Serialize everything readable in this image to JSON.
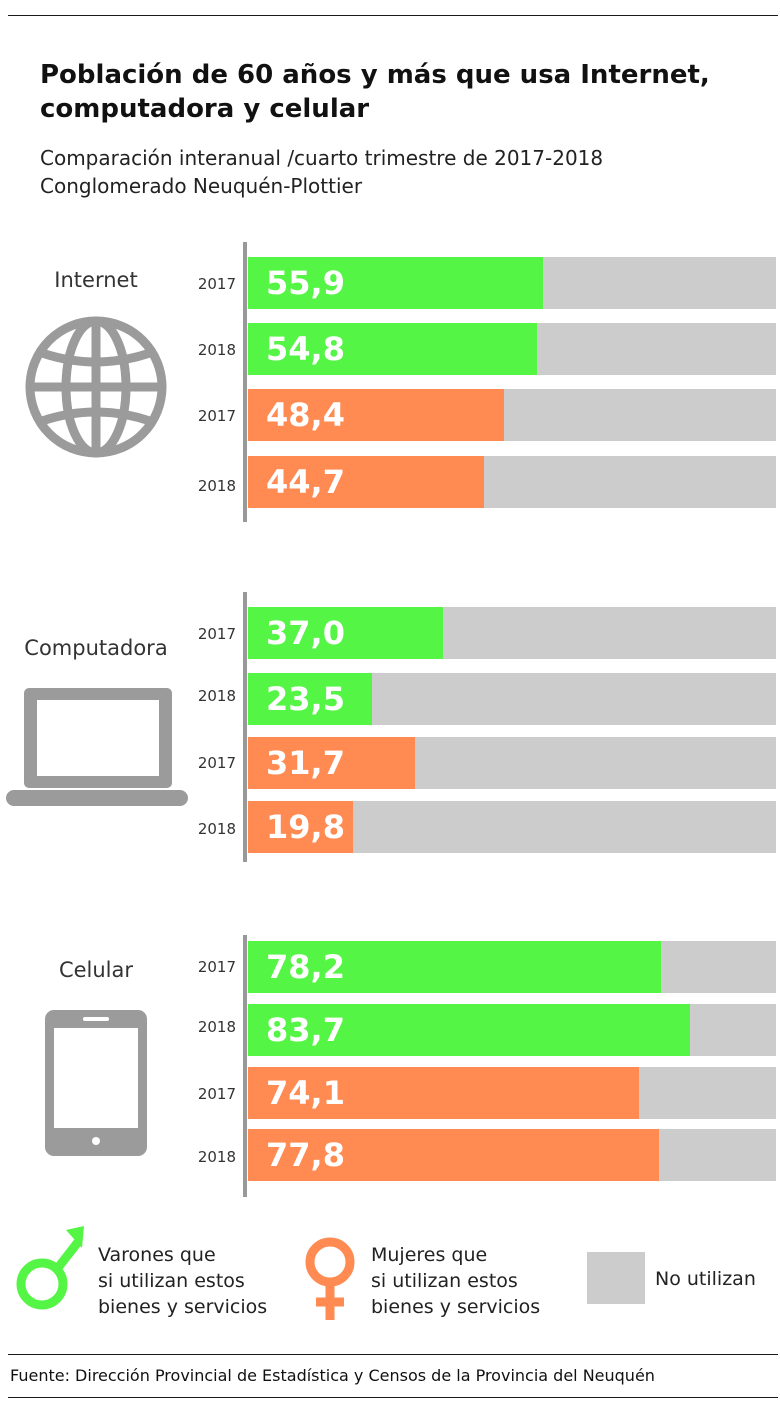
{
  "title": "Población de 60 años y más que usa Internet, computadora y celular",
  "subtitle_lines": [
    "Comparación interanual /cuarto trimestre de 2017-2018",
    "Conglomerado Neuquén-Plottier"
  ],
  "colors": {
    "varones": "#55f546",
    "mujeres": "#ff8a52",
    "no_utilizan": "#cccccc",
    "icon": "#9b9b9b"
  },
  "chart_data": {
    "type": "bar",
    "orientation": "horizontal",
    "stacked_to": 100,
    "xlim": [
      0,
      100
    ],
    "groups": [
      {
        "name": "Internet",
        "icon": "globe-icon",
        "bars": [
          {
            "year": "2017",
            "sex": "varones",
            "value": 55.9,
            "label": "55,9"
          },
          {
            "year": "2018",
            "sex": "varones",
            "value": 54.8,
            "label": "54,8"
          },
          {
            "year": "2017",
            "sex": "mujeres",
            "value": 48.4,
            "label": "48,4"
          },
          {
            "year": "2018",
            "sex": "mujeres",
            "value": 44.7,
            "label": "44,7"
          }
        ]
      },
      {
        "name": "Computadora",
        "icon": "laptop-icon",
        "bars": [
          {
            "year": "2017",
            "sex": "varones",
            "value": 37.0,
            "label": "37,0"
          },
          {
            "year": "2018",
            "sex": "varones",
            "value": 23.5,
            "label": "23,5"
          },
          {
            "year": "2017",
            "sex": "mujeres",
            "value": 31.7,
            "label": "31,7"
          },
          {
            "year": "2018",
            "sex": "mujeres",
            "value": 19.8,
            "label": "19,8"
          }
        ]
      },
      {
        "name": "Celular",
        "icon": "cellphone-icon",
        "bars": [
          {
            "year": "2017",
            "sex": "varones",
            "value": 78.2,
            "label": "78,2"
          },
          {
            "year": "2018",
            "sex": "varones",
            "value": 83.7,
            "label": "83,7"
          },
          {
            "year": "2017",
            "sex": "mujeres",
            "value": 74.1,
            "label": "74,1"
          },
          {
            "year": "2018",
            "sex": "mujeres",
            "value": 77.8,
            "label": "77,8"
          }
        ]
      }
    ],
    "legend": {
      "varones": [
        "Varones que",
        "si utilizan estos",
        "bienes y servicios"
      ],
      "mujeres": [
        "Mujeres que",
        "si utilizan estos",
        "bienes y servicios"
      ],
      "no_utilizan": "No utilizan"
    }
  },
  "footer": "Fuente: Dirección Provincial de Estadística y Censos de la Provincia del Neuquén"
}
